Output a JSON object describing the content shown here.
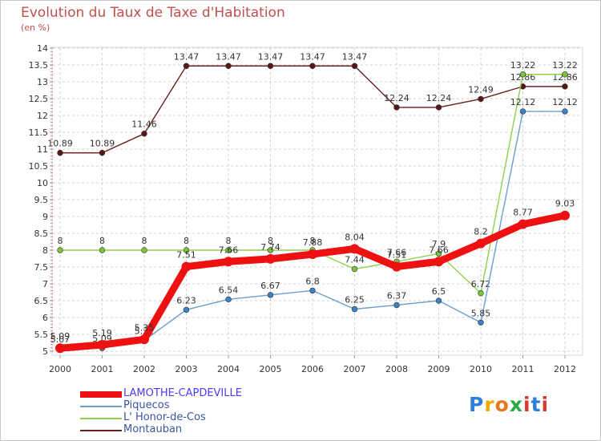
{
  "title": "Evolution du Taux de Taxe d'Habitation",
  "subtitle": "(en %)",
  "logo": {
    "p": "P",
    "r": "r",
    "o": "o",
    "x": "x",
    "i": "i",
    "t": "t",
    "i2": "i"
  },
  "chart_data": {
    "type": "line",
    "title": "Evolution du Taux de Taxe d'Habitation",
    "ylabel": "(en %)",
    "xlabel": "",
    "ylim": [
      5,
      14
    ],
    "yticks": [
      "5",
      "5.5",
      "6",
      "6.5",
      "7",
      "7.5",
      "8",
      "8.5",
      "9",
      "9.5",
      "10",
      "10.5",
      "11",
      "11.5",
      "12",
      "12.5",
      "13",
      "13.5",
      "14"
    ],
    "categories": [
      "2000",
      "2001",
      "2002",
      "2003",
      "2004",
      "2005",
      "2006",
      "2007",
      "2008",
      "2009",
      "2010",
      "2011",
      "2012"
    ],
    "series": [
      {
        "name": "Montauban",
        "color": "#6b1f1f",
        "marker": "#5a1515",
        "values": [
          10.89,
          10.89,
          11.46,
          13.47,
          13.47,
          13.47,
          13.47,
          13.47,
          12.24,
          12.24,
          12.49,
          12.86,
          12.86
        ],
        "labels": [
          "10.89",
          "10.89",
          "11.46",
          "13.47",
          "13.47",
          "13.47",
          "13.47",
          "13.47",
          "12.24",
          "12.24",
          "12.49",
          "12.86",
          "12.86"
        ]
      },
      {
        "name": "L' Honor-de-Cos",
        "color": "#8fd14f",
        "marker": "#7cc43a",
        "values": [
          8,
          8,
          8,
          8,
          8,
          8,
          8,
          7.44,
          7.66,
          7.9,
          6.72,
          13.22,
          13.22
        ],
        "labels": [
          "8",
          "8",
          "8",
          "8",
          "8",
          "8",
          "8",
          "7.44",
          "7.66",
          "7.9",
          "6.72",
          "13.22",
          "13.22"
        ]
      },
      {
        "name": "Piquecos",
        "color": "#6a9fcb",
        "marker": "#3d82c4",
        "values": [
          5.07,
          5.09,
          5.32,
          6.23,
          6.54,
          6.67,
          6.8,
          6.25,
          6.37,
          6.5,
          5.85,
          12.12,
          12.12
        ],
        "labels": [
          "5.07",
          "5.09",
          "5.32",
          "6.23",
          "6.54",
          "6.67",
          "6.8",
          "6.25",
          "6.37",
          "6.5",
          "5.85",
          "12.12",
          "12.12"
        ]
      },
      {
        "name": "LAMOTHE-CAPDEVILLE",
        "color": "#ee1111",
        "marker": "#ee1111",
        "values": [
          5.09,
          5.19,
          5.35,
          7.51,
          7.66,
          7.74,
          7.88,
          8.04,
          7.51,
          7.66,
          8.2,
          8.77,
          9.03
        ],
        "labels": [
          "5.09",
          "5.19",
          "5.35",
          "7.51",
          "7.66",
          "7.74",
          "7.88",
          "8.04",
          "7.51",
          "7.66",
          "8.2",
          "8.77",
          "9.03"
        ]
      }
    ]
  }
}
